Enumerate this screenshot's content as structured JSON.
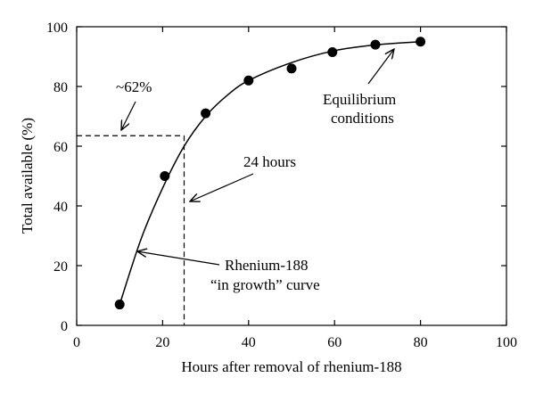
{
  "chart_data": {
    "type": "scatter",
    "title": "",
    "xlabel": "Hours after removal of rhenium-188",
    "ylabel": "Total available (%)",
    "xlim": [
      0,
      100
    ],
    "ylim": [
      0,
      100
    ],
    "xticks": [
      0,
      20,
      40,
      60,
      80,
      100
    ],
    "yticks": [
      0,
      20,
      40,
      60,
      80,
      100
    ],
    "grid": false,
    "legend": "none",
    "series": [
      {
        "points": [
          {
            "x": 10,
            "y": 7
          },
          {
            "x": 20.5,
            "y": 50
          },
          {
            "x": 30,
            "y": 71
          },
          {
            "x": 40,
            "y": 82
          },
          {
            "x": 50,
            "y": 86
          },
          {
            "x": 59.5,
            "y": 91.5
          },
          {
            "x": 69.5,
            "y": 94
          },
          {
            "x": 80,
            "y": 95
          }
        ]
      }
    ],
    "fit_curve": {
      "type": "saturation",
      "points": [
        {
          "x": 10,
          "y": 7
        },
        {
          "x": 15,
          "y": 29
        },
        {
          "x": 20,
          "y": 46
        },
        {
          "x": 25,
          "y": 60
        },
        {
          "x": 30,
          "y": 70
        },
        {
          "x": 35,
          "y": 77
        },
        {
          "x": 40,
          "y": 82
        },
        {
          "x": 50,
          "y": 88
        },
        {
          "x": 60,
          "y": 92
        },
        {
          "x": 70,
          "y": 94
        },
        {
          "x": 80,
          "y": 95
        }
      ]
    },
    "reference_lines": {
      "x": 25,
      "y": 63.5
    },
    "annotations": {
      "pct_label": "~62%",
      "hours_label": "24 hours",
      "equilibrium_line1": "Equilibrium",
      "equilibrium_line2": "conditions",
      "curve_line1": "Rhenium-188",
      "curve_line2": "“in growth” curve"
    }
  }
}
